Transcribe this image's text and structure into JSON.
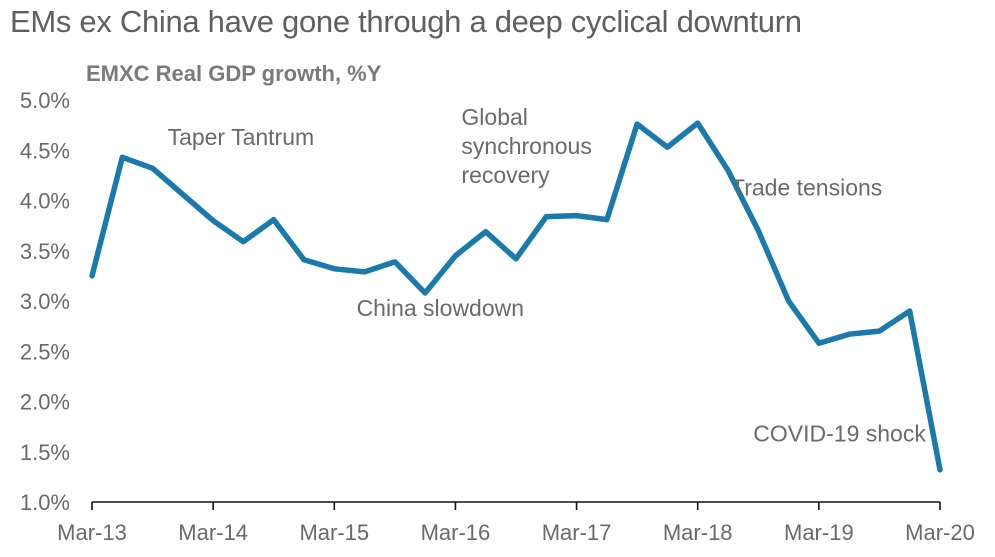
{
  "title": "EMs ex China have gone through a deep cyclical downturn",
  "chart_data": {
    "type": "line",
    "subtitle": "EMXC Real GDP growth, %Y",
    "x": [
      "Mar-13",
      "Jun-13",
      "Sep-13",
      "Dec-13",
      "Mar-14",
      "Jun-14",
      "Sep-14",
      "Dec-14",
      "Mar-15",
      "Jun-15",
      "Sep-15",
      "Dec-15",
      "Mar-16",
      "Jun-16",
      "Sep-16",
      "Dec-16",
      "Mar-17",
      "Jun-17",
      "Sep-17",
      "Dec-17",
      "Mar-18",
      "Jun-18",
      "Sep-18",
      "Dec-18",
      "Mar-19",
      "Jun-19",
      "Sep-19",
      "Dec-19",
      "Mar-20"
    ],
    "series": [
      {
        "color": "#1a7aab",
        "values": [
          3.25,
          4.43,
          4.32,
          4.06,
          3.8,
          3.59,
          3.81,
          3.41,
          3.32,
          3.29,
          3.39,
          3.08,
          3.45,
          3.69,
          3.42,
          3.84,
          3.85,
          3.81,
          4.76,
          4.53,
          4.77,
          4.3,
          3.7,
          3.0,
          2.58,
          2.67,
          2.7,
          2.9,
          1.32
        ]
      }
    ],
    "xticks": [
      "Mar-13",
      "Mar-14",
      "Mar-15",
      "Mar-16",
      "Mar-17",
      "Mar-18",
      "Mar-19",
      "Mar-20"
    ],
    "yticks": [
      "1.0%",
      "1.5%",
      "2.0%",
      "2.5%",
      "3.0%",
      "3.5%",
      "4.0%",
      "4.5%",
      "5.0%"
    ],
    "ylim": [
      1.0,
      5.0
    ],
    "grid": false,
    "annotations": [
      {
        "lines": [
          "Taper Tantrum"
        ],
        "x": "Sep-13",
        "y": 4.55
      },
      {
        "lines": [
          "China slowdown"
        ],
        "x": "Jun-15",
        "y": 2.85
      },
      {
        "lines": [
          "Global",
          "synchronous",
          "recovery"
        ],
        "x": "Mar-16",
        "y": 4.75
      },
      {
        "lines": [
          "Trade tensions"
        ],
        "x": "Jun-18",
        "y": 4.05
      },
      {
        "lines": [
          "COVID-19 shock"
        ],
        "x": "Sep-18",
        "y": 1.6
      }
    ]
  }
}
